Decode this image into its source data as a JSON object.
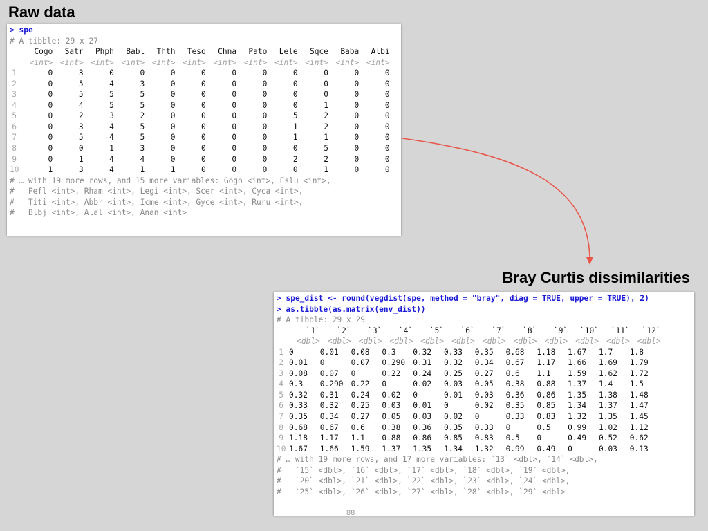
{
  "headings": {
    "raw": "Raw data",
    "bray": "Bray Curtis dissimilarities"
  },
  "raw_console": {
    "command": "> spe",
    "tibble_info": "# A tibble: 29 x 27",
    "columns": [
      "Cogo",
      "Satr",
      "Phph",
      "Babl",
      "Thth",
      "Teso",
      "Chna",
      "Pato",
      "Lele",
      "Sqce",
      "Baba",
      "Albi"
    ],
    "type_label": "<int>",
    "rows": [
      [
        "0",
        "3",
        "0",
        "0",
        "0",
        "0",
        "0",
        "0",
        "0",
        "0",
        "0",
        "0"
      ],
      [
        "0",
        "5",
        "4",
        "3",
        "0",
        "0",
        "0",
        "0",
        "0",
        "0",
        "0",
        "0"
      ],
      [
        "0",
        "5",
        "5",
        "5",
        "0",
        "0",
        "0",
        "0",
        "0",
        "0",
        "0",
        "0"
      ],
      [
        "0",
        "4",
        "5",
        "5",
        "0",
        "0",
        "0",
        "0",
        "0",
        "1",
        "0",
        "0"
      ],
      [
        "0",
        "2",
        "3",
        "2",
        "0",
        "0",
        "0",
        "0",
        "5",
        "2",
        "0",
        "0"
      ],
      [
        "0",
        "3",
        "4",
        "5",
        "0",
        "0",
        "0",
        "0",
        "1",
        "2",
        "0",
        "0"
      ],
      [
        "0",
        "5",
        "4",
        "5",
        "0",
        "0",
        "0",
        "0",
        "1",
        "1",
        "0",
        "0"
      ],
      [
        "0",
        "0",
        "1",
        "3",
        "0",
        "0",
        "0",
        "0",
        "0",
        "5",
        "0",
        "0"
      ],
      [
        "0",
        "1",
        "4",
        "4",
        "0",
        "0",
        "0",
        "0",
        "2",
        "2",
        "0",
        "0"
      ],
      [
        "1",
        "3",
        "4",
        "1",
        "1",
        "0",
        "0",
        "0",
        "0",
        "1",
        "0",
        "0"
      ]
    ],
    "footer": [
      "# … with 19 more rows, and 15 more variables: Gogo <int>, Eslu <int>,",
      "#   Pefl <int>, Rham <int>, Legi <int>, Scer <int>, Cyca <int>,",
      "#   Titi <int>, Abbr <int>, Icme <int>, Gyce <int>, Ruru <int>,",
      "#   Blbj <int>, Alal <int>, Anan <int>"
    ]
  },
  "dist_console": {
    "command1": "> spe_dist <- round(vegdist(spe, method = \"bray\", diag = TRUE, upper = TRUE), 2)",
    "command2": "> as.tibble(as.matrix(env_dist))",
    "tibble_info": "# A tibble: 29 x 29",
    "columns": [
      "`1`",
      "`2`",
      "`3`",
      "`4`",
      "`5`",
      "`6`",
      "`7`",
      "`8`",
      "`9`",
      "`10`",
      "`11`",
      "`12`"
    ],
    "type_label": "<dbl>",
    "rows": [
      [
        "0",
        "0.01",
        "0.08",
        "0.3",
        "0.32",
        "0.33",
        "0.35",
        "0.68",
        "1.18",
        "1.67",
        "1.7",
        "1.8"
      ],
      [
        "0.01",
        "0",
        "0.07",
        "0.290",
        "0.31",
        "0.32",
        "0.34",
        "0.67",
        "1.17",
        "1.66",
        "1.69",
        "1.79"
      ],
      [
        "0.08",
        "0.07",
        "0",
        "0.22",
        "0.24",
        "0.25",
        "0.27",
        "0.6",
        "1.1",
        "1.59",
        "1.62",
        "1.72"
      ],
      [
        "0.3",
        "0.290",
        "0.22",
        "0",
        "0.02",
        "0.03",
        "0.05",
        "0.38",
        "0.88",
        "1.37",
        "1.4",
        "1.5"
      ],
      [
        "0.32",
        "0.31",
        "0.24",
        "0.02",
        "0",
        "0.01",
        "0.03",
        "0.36",
        "0.86",
        "1.35",
        "1.38",
        "1.48"
      ],
      [
        "0.33",
        "0.32",
        "0.25",
        "0.03",
        "0.01",
        "0",
        "0.02",
        "0.35",
        "0.85",
        "1.34",
        "1.37",
        "1.47"
      ],
      [
        "0.35",
        "0.34",
        "0.27",
        "0.05",
        "0.03",
        "0.02",
        "0",
        "0.33",
        "0.83",
        "1.32",
        "1.35",
        "1.45"
      ],
      [
        "0.68",
        "0.67",
        "0.6",
        "0.38",
        "0.36",
        "0.35",
        "0.33",
        "0",
        "0.5",
        "0.99",
        "1.02",
        "1.12"
      ],
      [
        "1.18",
        "1.17",
        "1.1",
        "0.88",
        "0.86",
        "0.85",
        "0.83",
        "0.5",
        "0",
        "0.49",
        "0.52",
        "0.62"
      ],
      [
        "1.67",
        "1.66",
        "1.59",
        "1.37",
        "1.35",
        "1.34",
        "1.32",
        "0.99",
        "0.49",
        "0",
        "0.03",
        "0.13"
      ]
    ],
    "footer": [
      "# … with 19 more rows, and 17 more variables: `13` <dbl>, `14` <dbl>,",
      "#   `15` <dbl>, `16` <dbl>, `17` <dbl>, `18` <dbl>, `19` <dbl>,",
      "#   `20` <dbl>, `21` <dbl>, `22` <dbl>, `23` <dbl>, `24` <dbl>,",
      "#   `25` <dbl>, `26` <dbl>, `27` <dbl>, `28` <dbl>, `29` <dbl>"
    ]
  },
  "colors": {
    "arrow": "#e8574a",
    "command": "#1a1ad6"
  },
  "page_number": "88"
}
